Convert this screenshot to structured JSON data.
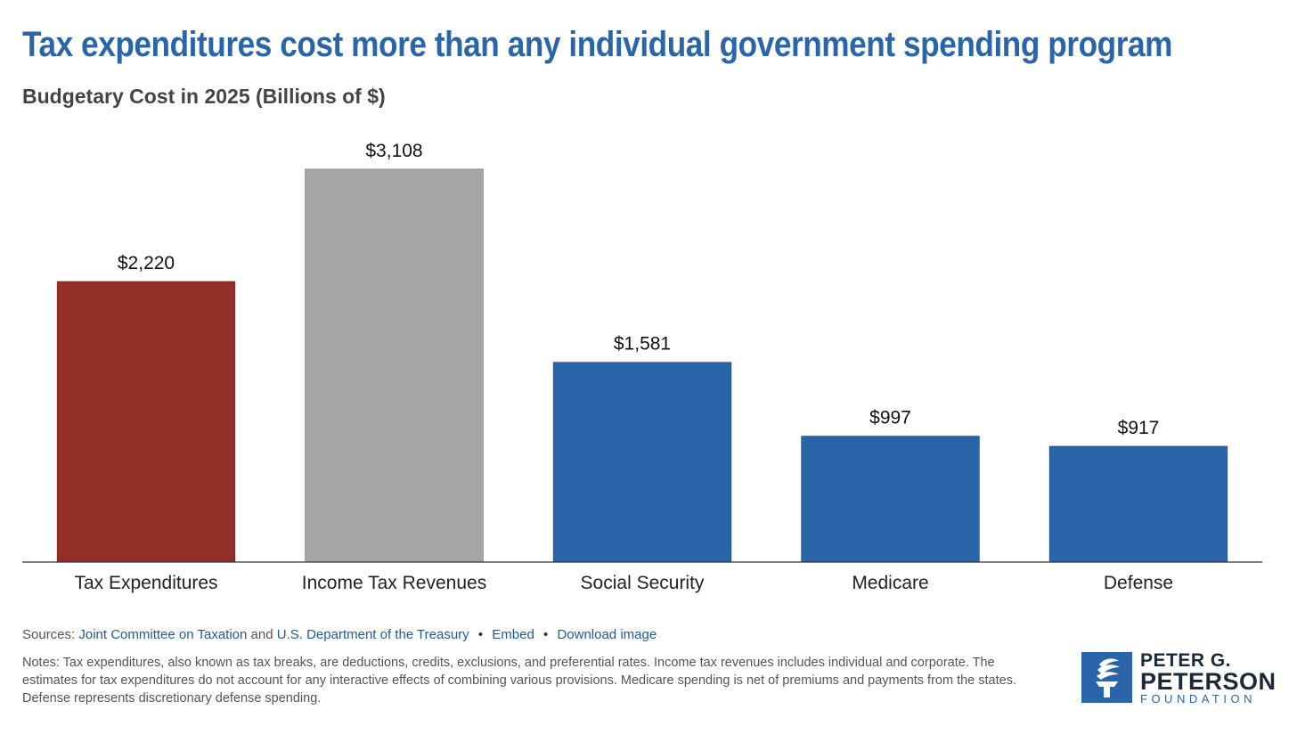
{
  "title": "Tax expenditures cost more than any individual government spending program",
  "subtitle": "Budgetary Cost in 2025 (Billions of $)",
  "chart_data": {
    "type": "bar",
    "title": "Tax expenditures cost more than any individual government spending program",
    "subtitle": "Budgetary Cost in 2025 (Billions of $)",
    "categories": [
      "Tax Expenditures",
      "Income Tax Revenues",
      "Social Security",
      "Medicare",
      "Defense"
    ],
    "values": [
      2220,
      3108,
      1581,
      997,
      917
    ],
    "value_labels": [
      "$2,220",
      "$3,108",
      "$1,581",
      "$997",
      "$917"
    ],
    "colors": [
      "#932f28",
      "#a6a6a6",
      "#2b65a9",
      "#2b65a9",
      "#2b65a9"
    ],
    "xlabel": "",
    "ylabel": "",
    "ylim": [
      0,
      3360
    ],
    "grid": false,
    "legend": "none"
  },
  "sources": {
    "prefix": "Sources:",
    "link1": "Joint Committee on Taxation",
    "and": "and",
    "link2": "U.S. Department of the Treasury",
    "bullet": "•",
    "embed": "Embed",
    "download": "Download image"
  },
  "notes": "Notes: Tax expenditures, also known as tax breaks, are deductions, credits, exclusions, and preferential rates. Income tax revenues includes individual and corporate. The estimates for tax expenditures do not account for any interactive effects of combining various provisions. Medicare spending is net of premiums and payments from the states. Defense represents discretionary defense spending.",
  "logo": {
    "line1": "PETER G.",
    "line2": "PETERSON",
    "line3": "FOUNDATION",
    "color": "#2b65a9"
  }
}
